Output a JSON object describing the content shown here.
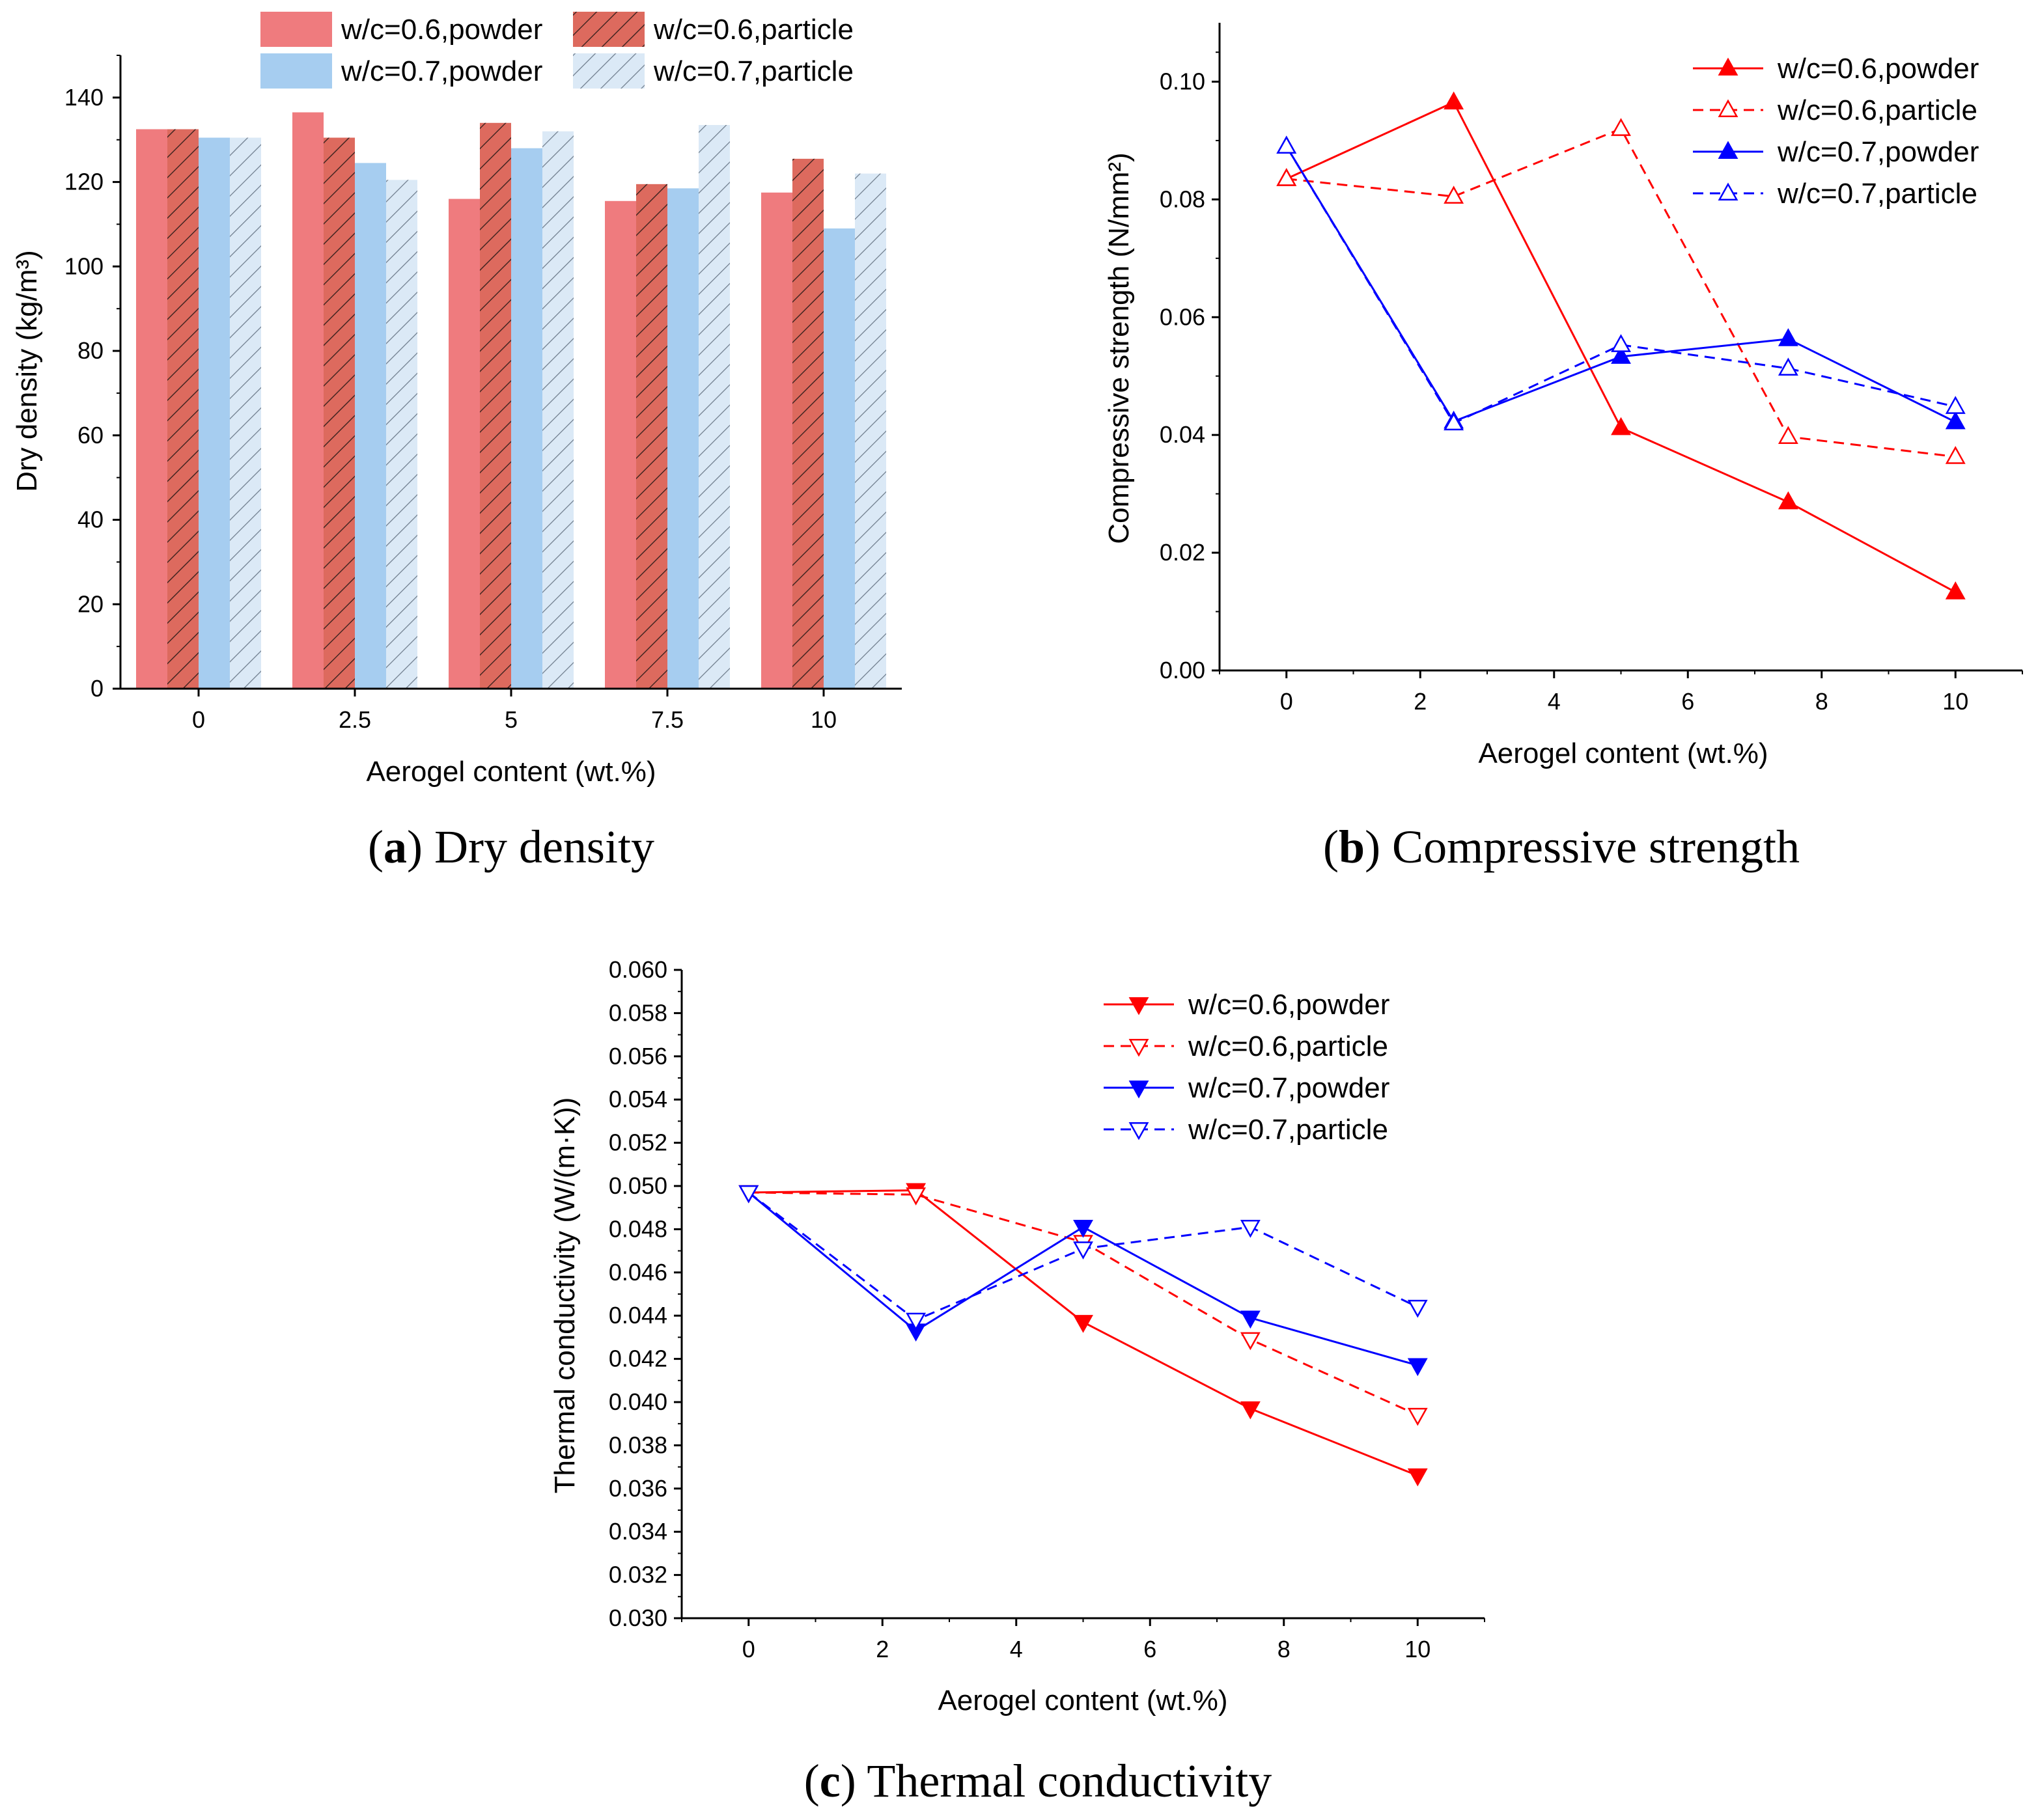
{
  "colors": {
    "powder06": "#ef7b7e",
    "particle06": "#dd6a5e",
    "powder07": "#a6cdf0",
    "particle07": "#dbe9f6",
    "red": "#ff0000",
    "blue": "#0000ff"
  },
  "chart_data": [
    {
      "id": "a",
      "type": "bar",
      "caption_letter": "a",
      "caption_text": "Dry density",
      "xlabel": "Aerogel content (wt.%)",
      "ylabel": "Dry density (kg/m³)",
      "categories": [
        "0",
        "2.5",
        "5",
        "7.5",
        "10"
      ],
      "ylim": [
        0,
        150
      ],
      "yticks": [
        0,
        20,
        40,
        60,
        80,
        100,
        120,
        140
      ],
      "legend_position": "top",
      "series": [
        {
          "name": "w/c=0.6,powder",
          "values": [
            132.5,
            136.5,
            116.0,
            115.5,
            117.5
          ],
          "fill": "powder06",
          "hatch": "none"
        },
        {
          "name": "w/c=0.6,particle",
          "values": [
            132.5,
            130.5,
            134.0,
            119.5,
            125.5
          ],
          "fill": "particle06",
          "hatch": "dense"
        },
        {
          "name": "w/c=0.7,powder",
          "values": [
            130.5,
            124.5,
            128.0,
            118.5,
            109.0
          ],
          "fill": "powder07",
          "hatch": "none"
        },
        {
          "name": "w/c=0.7,particle",
          "values": [
            130.5,
            120.5,
            132.0,
            133.5,
            122.0
          ],
          "fill": "particle07",
          "hatch": "light"
        }
      ]
    },
    {
      "id": "b",
      "type": "line",
      "caption_letter": "b",
      "caption_text": "Compressive strength",
      "xlabel": "Aerogel content (wt.%)",
      "ylabel": "Compressive strength (N/mm²)",
      "x": [
        0,
        2.5,
        5,
        7.5,
        10
      ],
      "xlim": [
        -1,
        11
      ],
      "ylim": [
        0,
        0.11
      ],
      "xticks": [
        0,
        2,
        4,
        6,
        8,
        10
      ],
      "yticks": [
        0.0,
        0.02,
        0.04,
        0.06,
        0.08,
        0.1
      ],
      "ytick_labels": [
        "0.00",
        "0.02",
        "0.04",
        "0.06",
        "0.08",
        "0.10"
      ],
      "legend_position": "top-right",
      "marker_direction": "up",
      "series": [
        {
          "name": "w/c=0.6,powder",
          "values": [
            0.0835,
            0.0965,
            0.0412,
            0.0286,
            0.0133
          ],
          "color": "red",
          "dash": "solid",
          "filled": true
        },
        {
          "name": "w/c=0.6,particle",
          "values": [
            0.0835,
            0.0805,
            0.092,
            0.0397,
            0.0363
          ],
          "color": "red",
          "dash": "dashed",
          "filled": false
        },
        {
          "name": "w/c=0.7,powder",
          "values": [
            0.089,
            0.0423,
            0.0533,
            0.0563,
            0.0422
          ],
          "color": "blue",
          "dash": "solid",
          "filled": true
        },
        {
          "name": "w/c=0.7,particle",
          "values": [
            0.089,
            0.042,
            0.0553,
            0.0513,
            0.0448
          ],
          "color": "blue",
          "dash": "dashed",
          "filled": false
        }
      ]
    },
    {
      "id": "c",
      "type": "line",
      "caption_letter": "c",
      "caption_text": "Thermal conductivity",
      "xlabel": "Aerogel content (wt.%)",
      "ylabel": "Thermal conductivity (W/(m·K))",
      "x": [
        0,
        2.5,
        5,
        7.5,
        10
      ],
      "xlim": [
        -1,
        11
      ],
      "ylim": [
        0.03,
        0.06
      ],
      "xticks": [
        0,
        2,
        4,
        6,
        8,
        10
      ],
      "yticks": [
        0.03,
        0.032,
        0.034,
        0.036,
        0.038,
        0.04,
        0.042,
        0.044,
        0.046,
        0.048,
        0.05,
        0.052,
        0.054,
        0.056,
        0.058,
        0.06
      ],
      "ytick_labels": [
        "0.030",
        "0.032",
        "0.034",
        "0.036",
        "0.038",
        "0.040",
        "0.042",
        "0.044",
        "0.046",
        "0.048",
        "0.050",
        "0.052",
        "0.054",
        "0.056",
        "0.058",
        "0.060"
      ],
      "legend_position": "top-right",
      "marker_direction": "down",
      "series": [
        {
          "name": "w/c=0.6,powder",
          "values": [
            0.0497,
            0.0498,
            0.0437,
            0.0397,
            0.0366
          ],
          "color": "red",
          "dash": "solid",
          "filled": true
        },
        {
          "name": "w/c=0.6,particle",
          "values": [
            0.0497,
            0.0496,
            0.0474,
            0.0429,
            0.0394
          ],
          "color": "red",
          "dash": "dashed",
          "filled": false
        },
        {
          "name": "w/c=0.7,powder",
          "values": [
            0.0497,
            0.0433,
            0.0481,
            0.0439,
            0.0417
          ],
          "color": "blue",
          "dash": "solid",
          "filled": true
        },
        {
          "name": "w/c=0.7,particle",
          "values": [
            0.0497,
            0.0438,
            0.0471,
            0.0481,
            0.0444
          ],
          "color": "blue",
          "dash": "dashed",
          "filled": false
        }
      ]
    }
  ]
}
